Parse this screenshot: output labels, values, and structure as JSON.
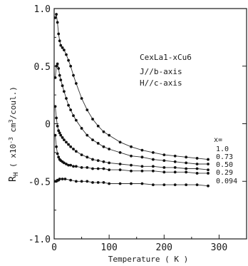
{
  "chart_data": {
    "type": "scatter",
    "xlabel": "Temperature ( K )",
    "ylabel": "R",
    "ylabel_sub": "H",
    "ylabel_units": "( x10",
    "ylabel_units_rest": "cm",
    "ylabel_units_end": "/coul.)",
    "xlim": [
      0,
      350
    ],
    "ylim": [
      -1.0,
      1.0
    ],
    "x_ticks": [
      0,
      100,
      200,
      300
    ],
    "x_tick_labels": [
      "0",
      "100",
      "200",
      "300"
    ],
    "y_ticks": [
      1.0,
      0.5,
      0,
      -0.5,
      -1.0
    ],
    "y_tick_labels": [
      "1.0",
      "0.5",
      "0",
      "-0.5",
      "-1.0"
    ],
    "annotations": [
      "CexLa1-xCu6",
      "J//b-axis",
      "H//c-axis"
    ],
    "series_header": "x=",
    "series": [
      {
        "name": "1.0",
        "x": [
          2,
          4,
          6,
          8,
          10,
          12,
          15,
          18,
          22,
          26,
          30,
          35,
          40,
          50,
          60,
          70,
          80,
          90,
          100,
          120,
          140,
          160,
          180,
          200,
          220,
          240,
          260,
          280
        ],
        "y": [
          0.92,
          0.95,
          0.88,
          0.78,
          0.72,
          0.68,
          0.66,
          0.64,
          0.6,
          0.55,
          0.5,
          0.42,
          0.35,
          0.22,
          0.12,
          0.04,
          -0.02,
          -0.07,
          -0.1,
          -0.16,
          -0.2,
          -0.23,
          -0.25,
          -0.27,
          -0.28,
          -0.29,
          -0.3,
          -0.31
        ]
      },
      {
        "name": "0.73",
        "x": [
          2,
          4,
          6,
          8,
          10,
          12,
          15,
          18,
          22,
          26,
          30,
          35,
          40,
          50,
          60,
          70,
          80,
          90,
          100,
          120,
          140,
          160,
          180,
          200,
          220,
          240,
          260,
          280
        ],
        "y": [
          0.4,
          0.5,
          0.52,
          0.48,
          0.42,
          0.38,
          0.33,
          0.28,
          0.22,
          0.16,
          0.12,
          0.07,
          0.03,
          -0.04,
          -0.1,
          -0.14,
          -0.17,
          -0.2,
          -0.22,
          -0.25,
          -0.28,
          -0.29,
          -0.31,
          -0.32,
          -0.33,
          -0.34,
          -0.35,
          -0.35
        ]
      },
      {
        "name": "0.50",
        "x": [
          2,
          4,
          6,
          8,
          10,
          12,
          15,
          18,
          22,
          26,
          30,
          35,
          40,
          50,
          60,
          70,
          80,
          90,
          100,
          120,
          140,
          160,
          180,
          200,
          220,
          240,
          260,
          280
        ],
        "y": [
          0.15,
          0.05,
          -0.02,
          -0.06,
          -0.08,
          -0.1,
          -0.12,
          -0.14,
          -0.16,
          -0.18,
          -0.2,
          -0.22,
          -0.24,
          -0.27,
          -0.29,
          -0.31,
          -0.32,
          -0.33,
          -0.34,
          -0.35,
          -0.36,
          -0.37,
          -0.37,
          -0.38,
          -0.38,
          -0.39,
          -0.39,
          -0.4
        ]
      },
      {
        "name": "0.29",
        "x": [
          2,
          4,
          6,
          8,
          10,
          12,
          15,
          18,
          22,
          26,
          30,
          35,
          40,
          50,
          60,
          70,
          80,
          90,
          100,
          120,
          140,
          160,
          180,
          200,
          220,
          240,
          260,
          280
        ],
        "y": [
          -0.1,
          -0.2,
          -0.26,
          -0.29,
          -0.31,
          -0.32,
          -0.33,
          -0.34,
          -0.35,
          -0.36,
          -0.36,
          -0.37,
          -0.37,
          -0.38,
          -0.38,
          -0.39,
          -0.39,
          -0.39,
          -0.4,
          -0.4,
          -0.41,
          -0.41,
          -0.41,
          -0.42,
          -0.42,
          -0.42,
          -0.43,
          -0.43
        ]
      },
      {
        "name": "0.094",
        "x": [
          2,
          4,
          6,
          8,
          10,
          15,
          20,
          30,
          40,
          50,
          60,
          70,
          80,
          90,
          100,
          120,
          140,
          160,
          180,
          200,
          220,
          240,
          260,
          280
        ],
        "y": [
          -0.5,
          -0.5,
          -0.49,
          -0.49,
          -0.48,
          -0.48,
          -0.48,
          -0.49,
          -0.5,
          -0.5,
          -0.5,
          -0.51,
          -0.51,
          -0.51,
          -0.52,
          -0.52,
          -0.52,
          -0.52,
          -0.53,
          -0.53,
          -0.53,
          -0.53,
          -0.53,
          -0.54
        ]
      }
    ],
    "grid": false
  }
}
